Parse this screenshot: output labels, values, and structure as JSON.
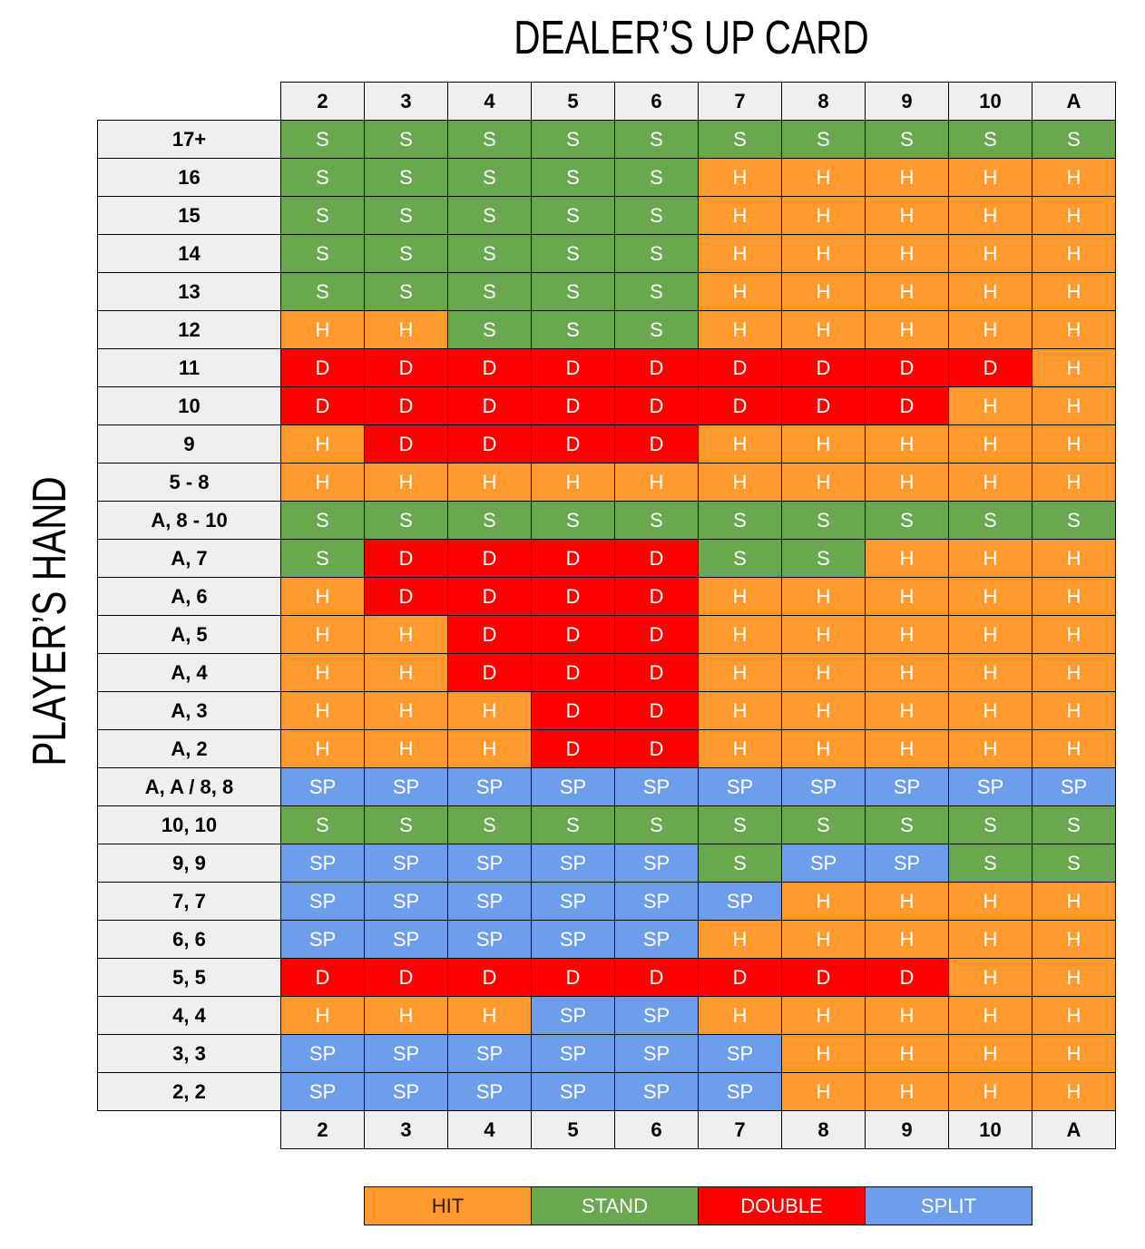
{
  "header": {
    "title": "DEALER’S UP CARD",
    "side_label": "PLAYER’S HAND"
  },
  "table": {
    "columns": [
      "2",
      "3",
      "4",
      "5",
      "6",
      "7",
      "8",
      "9",
      "10",
      "A"
    ],
    "rows": [
      {
        "label": "17+",
        "cells": [
          "S",
          "S",
          "S",
          "S",
          "S",
          "S",
          "S",
          "S",
          "S",
          "S"
        ]
      },
      {
        "label": "16",
        "cells": [
          "S",
          "S",
          "S",
          "S",
          "S",
          "H",
          "H",
          "H",
          "H",
          "H"
        ]
      },
      {
        "label": "15",
        "cells": [
          "S",
          "S",
          "S",
          "S",
          "S",
          "H",
          "H",
          "H",
          "H",
          "H"
        ]
      },
      {
        "label": "14",
        "cells": [
          "S",
          "S",
          "S",
          "S",
          "S",
          "H",
          "H",
          "H",
          "H",
          "H"
        ]
      },
      {
        "label": "13",
        "cells": [
          "S",
          "S",
          "S",
          "S",
          "S",
          "H",
          "H",
          "H",
          "H",
          "H"
        ]
      },
      {
        "label": "12",
        "cells": [
          "H",
          "H",
          "S",
          "S",
          "S",
          "H",
          "H",
          "H",
          "H",
          "H"
        ]
      },
      {
        "label": "11",
        "cells": [
          "D",
          "D",
          "D",
          "D",
          "D",
          "D",
          "D",
          "D",
          "D",
          "H"
        ]
      },
      {
        "label": "10",
        "cells": [
          "D",
          "D",
          "D",
          "D",
          "D",
          "D",
          "D",
          "D",
          "H",
          "H"
        ]
      },
      {
        "label": "9",
        "cells": [
          "H",
          "D",
          "D",
          "D",
          "D",
          "H",
          "H",
          "H",
          "H",
          "H"
        ]
      },
      {
        "label": "5 - 8",
        "cells": [
          "H",
          "H",
          "H",
          "H",
          "H",
          "H",
          "H",
          "H",
          "H",
          "H"
        ]
      },
      {
        "label": "A, 8 - 10",
        "cells": [
          "S",
          "S",
          "S",
          "S",
          "S",
          "S",
          "S",
          "S",
          "S",
          "S"
        ]
      },
      {
        "label": "A, 7",
        "cells": [
          "S",
          "D",
          "D",
          "D",
          "D",
          "S",
          "S",
          "H",
          "H",
          "H"
        ]
      },
      {
        "label": "A, 6",
        "cells": [
          "H",
          "D",
          "D",
          "D",
          "D",
          "H",
          "H",
          "H",
          "H",
          "H"
        ]
      },
      {
        "label": "A, 5",
        "cells": [
          "H",
          "H",
          "D",
          "D",
          "D",
          "H",
          "H",
          "H",
          "H",
          "H"
        ]
      },
      {
        "label": "A, 4",
        "cells": [
          "H",
          "H",
          "D",
          "D",
          "D",
          "H",
          "H",
          "H",
          "H",
          "H"
        ]
      },
      {
        "label": "A, 3",
        "cells": [
          "H",
          "H",
          "H",
          "D",
          "D",
          "H",
          "H",
          "H",
          "H",
          "H"
        ]
      },
      {
        "label": "A, 2",
        "cells": [
          "H",
          "H",
          "H",
          "D",
          "D",
          "H",
          "H",
          "H",
          "H",
          "H"
        ]
      },
      {
        "label": "A, A / 8, 8",
        "cells": [
          "SP",
          "SP",
          "SP",
          "SP",
          "SP",
          "SP",
          "SP",
          "SP",
          "SP",
          "SP"
        ]
      },
      {
        "label": "10, 10",
        "cells": [
          "S",
          "S",
          "S",
          "S",
          "S",
          "S",
          "S",
          "S",
          "S",
          "S"
        ]
      },
      {
        "label": "9, 9",
        "cells": [
          "SP",
          "SP",
          "SP",
          "SP",
          "SP",
          "S",
          "SP",
          "SP",
          "S",
          "S"
        ]
      },
      {
        "label": "7, 7",
        "cells": [
          "SP",
          "SP",
          "SP",
          "SP",
          "SP",
          "SP",
          "H",
          "H",
          "H",
          "H"
        ]
      },
      {
        "label": "6, 6",
        "cells": [
          "SP",
          "SP",
          "SP",
          "SP",
          "SP",
          "H",
          "H",
          "H",
          "H",
          "H"
        ]
      },
      {
        "label": "5, 5",
        "cells": [
          "D",
          "D",
          "D",
          "D",
          "D",
          "D",
          "D",
          "D",
          "H",
          "H"
        ]
      },
      {
        "label": "4, 4",
        "cells": [
          "H",
          "H",
          "H",
          "SP",
          "SP",
          "H",
          "H",
          "H",
          "H",
          "H"
        ]
      },
      {
        "label": "3, 3",
        "cells": [
          "SP",
          "SP",
          "SP",
          "SP",
          "SP",
          "SP",
          "H",
          "H",
          "H",
          "H"
        ]
      },
      {
        "label": "2, 2",
        "cells": [
          "SP",
          "SP",
          "SP",
          "SP",
          "SP",
          "SP",
          "H",
          "H",
          "H",
          "H"
        ]
      }
    ]
  },
  "legend": [
    {
      "code": "H",
      "label": "HIT",
      "color": "#ff9a2f"
    },
    {
      "code": "S",
      "label": "STAND",
      "color": "#6aa84f"
    },
    {
      "code": "D",
      "label": "DOUBLE",
      "color": "#ff0000"
    },
    {
      "code": "SP",
      "label": "SPLIT",
      "color": "#6d9eeb"
    }
  ]
}
